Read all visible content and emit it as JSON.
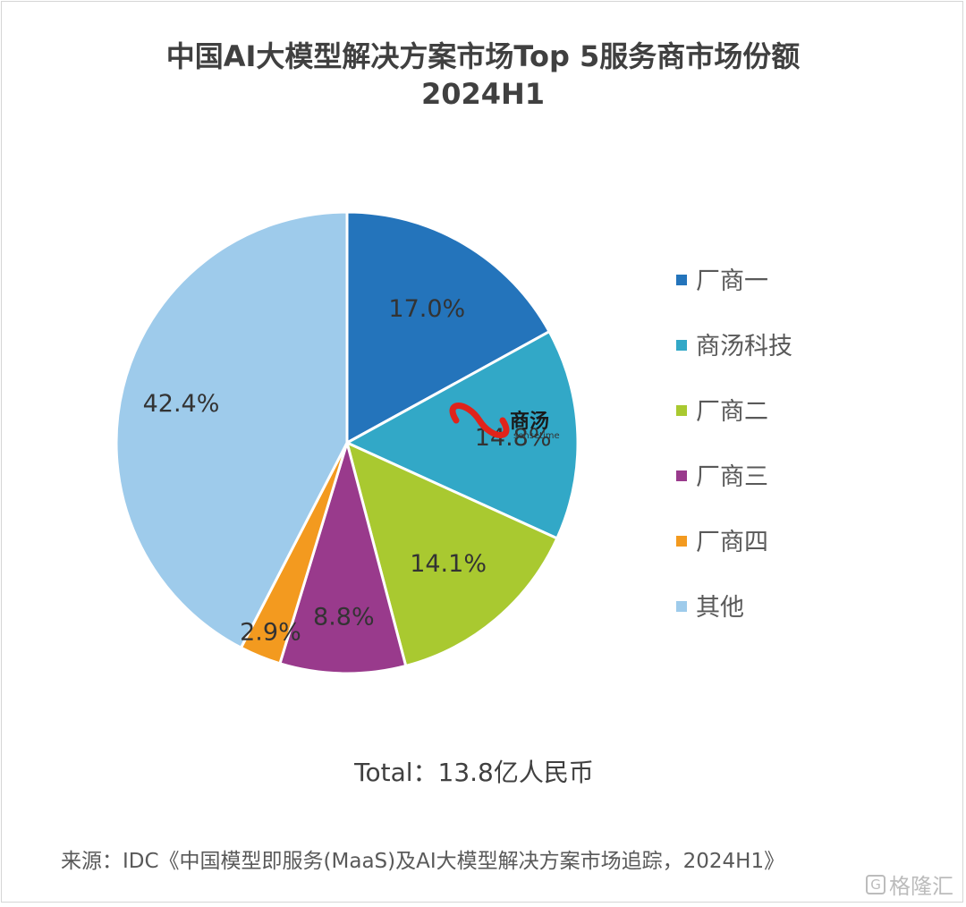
{
  "chart_data": {
    "type": "pie",
    "title_line1": "中国AI大模型解决方案市场Top 5服务商市场份额",
    "title_line2": "2024H1",
    "slices": [
      {
        "label": "厂商一",
        "value": 17.0,
        "display": "17.0%",
        "color": "#2474bb"
      },
      {
        "label": "商汤科技",
        "value": 14.8,
        "display": "14.8%",
        "color": "#32a8c7"
      },
      {
        "label": "厂商二",
        "value": 14.1,
        "display": "14.1%",
        "color": "#a9c930"
      },
      {
        "label": "厂商三",
        "value": 8.8,
        "display": "8.8%",
        "color": "#993a8c"
      },
      {
        "label": "厂商四",
        "value": 2.9,
        "display": "2.9%",
        "color": "#f39a1f"
      },
      {
        "label": "其他",
        "value": 42.4,
        "display": "42.4%",
        "color": "#9ecbeb"
      }
    ],
    "legend_position": "right",
    "total_text": "Total：13.8亿人民币",
    "source_text": "来源：IDC《中国模型即服务(MaaS)及AI大模型解决方案市场追踪，2024H1》"
  },
  "logo": {
    "cn": "商汤",
    "en": "sensetime"
  },
  "watermark": {
    "text": "格隆汇",
    "icon_char": "G"
  }
}
